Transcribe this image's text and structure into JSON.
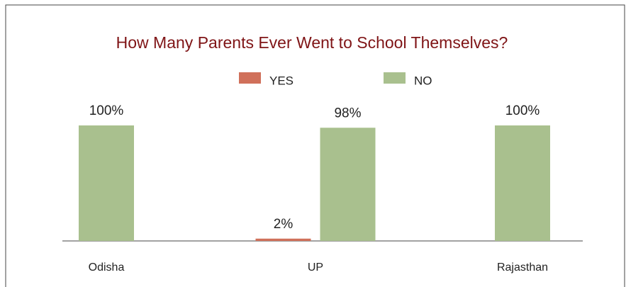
{
  "chart_data": {
    "type": "bar",
    "title": "How Many Parents Ever Went to School Themselves?",
    "categories": [
      "Odisha",
      "UP",
      "Rajasthan"
    ],
    "series": [
      {
        "name": "YES",
        "color": "#d0705a",
        "values": [
          null,
          2,
          null
        ],
        "value_labels": [
          null,
          "2%",
          null
        ]
      },
      {
        "name": "NO",
        "color": "#a9c08e",
        "values": [
          100,
          98,
          100
        ],
        "value_labels": [
          "100%",
          "98%",
          "100%"
        ]
      }
    ]
  }
}
